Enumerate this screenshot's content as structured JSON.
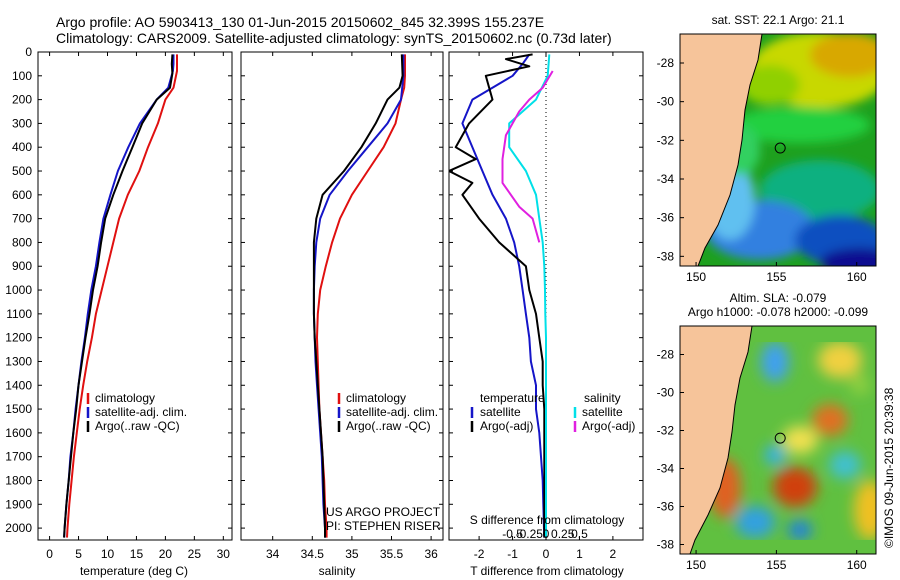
{
  "header": {
    "line1": "Argo profile: AO 5903413_130 01-Jun-2015 20150602_845 32.399S 155.237E",
    "line2": "Climatology: CARS2009. Satellite-adjusted climatology: synTS_20150602.nc (0.73d later)"
  },
  "credit": {
    "text": "©IMOS 09-Jun-2015 20:39:38"
  },
  "colors": {
    "climatology": "#e01010",
    "satellite": "#1515c8",
    "argo": "#000000",
    "sat_salinity": "#00e0e8",
    "argo_salinity": "#e020e0",
    "land": "#f6c49a",
    "ocean_low": "#1010a0",
    "ocean_mid": "#20c020",
    "ocean_high": "#e09000",
    "ocean_top": "#d02010"
  },
  "chart_data": [
    {
      "type": "line",
      "title": "",
      "xlabel": "temperature (deg C)",
      "ylabel": "",
      "xlim": [
        -2,
        31.5
      ],
      "ylim": [
        2050,
        0
      ],
      "xticks": [
        0,
        5,
        10,
        15,
        20,
        25,
        30
      ],
      "yticks": [
        0,
        100,
        200,
        300,
        400,
        500,
        600,
        700,
        800,
        900,
        1000,
        1100,
        1200,
        1300,
        1400,
        1500,
        1600,
        1700,
        1800,
        1900,
        2000
      ],
      "legend": [
        "climatology",
        "satellite-adj. clim.",
        "Argo(..raw -QC)"
      ],
      "legend_placement": "lower-middle",
      "series": [
        {
          "name": "climatology",
          "color": "#e01010",
          "values": [
            [
              22,
              10
            ],
            [
              22,
              50
            ],
            [
              22,
              80
            ],
            [
              21.4,
              150
            ],
            [
              20,
              200
            ],
            [
              18.7,
              300
            ],
            [
              17,
              400
            ],
            [
              15.5,
              500
            ],
            [
              13.5,
              600
            ],
            [
              12,
              700
            ],
            [
              11,
              800
            ],
            [
              10,
              900
            ],
            [
              9,
              1000
            ],
            [
              8,
              1100
            ],
            [
              7.3,
              1200
            ],
            [
              6.5,
              1300
            ],
            [
              5.8,
              1400
            ],
            [
              5.2,
              1500
            ],
            [
              4.7,
              1600
            ],
            [
              4.2,
              1700
            ],
            [
              3.8,
              1800
            ],
            [
              3.4,
              1900
            ],
            [
              3.1,
              2000
            ],
            [
              3,
              2040
            ]
          ]
        },
        {
          "name": "satellite-adj. clim.",
          "color": "#1515c8",
          "values": [
            [
              21.4,
              10
            ],
            [
              21.4,
              50
            ],
            [
              21.3,
              80
            ],
            [
              20.5,
              150
            ],
            [
              18.5,
              200
            ],
            [
              15.6,
              300
            ],
            [
              13.6,
              400
            ],
            [
              11.8,
              500
            ],
            [
              10.5,
              600
            ],
            [
              9.3,
              700
            ],
            [
              8.6,
              800
            ],
            [
              8,
              900
            ],
            [
              7.2,
              1000
            ],
            [
              6.6,
              1100
            ],
            [
              6.1,
              1200
            ],
            [
              5.5,
              1300
            ],
            [
              5,
              1400
            ],
            [
              4.5,
              1500
            ],
            [
              4.1,
              1600
            ],
            [
              3.6,
              1700
            ],
            [
              3.3,
              1800
            ],
            [
              2.9,
              1900
            ],
            [
              2.6,
              2000
            ],
            [
              2.5,
              2040
            ]
          ]
        },
        {
          "name": "Argo(..raw -QC)",
          "color": "#000000",
          "values": [
            [
              21.2,
              10
            ],
            [
              21.1,
              50
            ],
            [
              21.2,
              90
            ],
            [
              20.8,
              150
            ],
            [
              18.5,
              200
            ],
            [
              16,
              300
            ],
            [
              14.3,
              400
            ],
            [
              12.6,
              500
            ],
            [
              11,
              600
            ],
            [
              9.6,
              700
            ],
            [
              8.9,
              800
            ],
            [
              8.3,
              900
            ],
            [
              7.5,
              1000
            ],
            [
              6.9,
              1100
            ],
            [
              6.2,
              1200
            ],
            [
              5.6,
              1300
            ],
            [
              5,
              1400
            ],
            [
              4.6,
              1500
            ],
            [
              4.1,
              1600
            ],
            [
              3.7,
              1700
            ],
            [
              3.3,
              1800
            ],
            [
              2.9,
              1900
            ],
            [
              2.6,
              2000
            ],
            [
              2.5,
              2040
            ]
          ]
        }
      ]
    },
    {
      "type": "line",
      "title": "",
      "xlabel": "salinity",
      "ylabel": "",
      "xlim": [
        33.6,
        36.15
      ],
      "ylim": [
        2050,
        0
      ],
      "xticks": [
        34,
        34.5,
        35,
        35.5,
        36
      ],
      "xtick_labels": [
        "34",
        "34.5",
        "35",
        "35.5",
        "36"
      ],
      "legend": [
        "climatology",
        "satellite-adj. clim.",
        "Argo(..raw -QC)"
      ],
      "legend_placement": "lower-right",
      "annotation": [
        "US ARGO PROJECT",
        "PI: STEPHEN RISER"
      ],
      "series": [
        {
          "name": "climatology",
          "color": "#e01010",
          "values": [
            [
              35.67,
              10
            ],
            [
              35.67,
              100
            ],
            [
              35.66,
              150
            ],
            [
              35.62,
              200
            ],
            [
              35.55,
              300
            ],
            [
              35.4,
              400
            ],
            [
              35.2,
              500
            ],
            [
              35.0,
              600
            ],
            [
              34.85,
              700
            ],
            [
              34.75,
              800
            ],
            [
              34.67,
              900
            ],
            [
              34.6,
              1000
            ],
            [
              34.57,
              1100
            ],
            [
              34.56,
              1200
            ],
            [
              34.57,
              1300
            ],
            [
              34.58,
              1400
            ],
            [
              34.59,
              1500
            ],
            [
              34.61,
              1600
            ],
            [
              34.63,
              1700
            ],
            [
              34.65,
              1800
            ],
            [
              34.66,
              1900
            ],
            [
              34.68,
              2000
            ],
            [
              34.68,
              2040
            ]
          ]
        },
        {
          "name": "satellite-adj. clim.",
          "color": "#1515c8",
          "values": [
            [
              35.65,
              10
            ],
            [
              35.65,
              100
            ],
            [
              35.62,
              200
            ],
            [
              35.45,
              300
            ],
            [
              35.2,
              400
            ],
            [
              34.95,
              500
            ],
            [
              34.72,
              600
            ],
            [
              34.6,
              700
            ],
            [
              34.55,
              800
            ],
            [
              34.53,
              900
            ],
            [
              34.52,
              1000
            ],
            [
              34.52,
              1100
            ],
            [
              34.53,
              1200
            ],
            [
              34.54,
              1300
            ],
            [
              34.56,
              1400
            ],
            [
              34.58,
              1500
            ],
            [
              34.6,
              1600
            ],
            [
              34.62,
              1700
            ],
            [
              34.63,
              1800
            ],
            [
              34.64,
              1900
            ],
            [
              34.66,
              2000
            ],
            [
              34.66,
              2040
            ]
          ]
        },
        {
          "name": "Argo(..raw -QC)",
          "color": "#000000",
          "values": [
            [
              35.63,
              10
            ],
            [
              35.64,
              100
            ],
            [
              35.6,
              150
            ],
            [
              35.45,
              200
            ],
            [
              35.3,
              300
            ],
            [
              35.12,
              400
            ],
            [
              34.9,
              500
            ],
            [
              34.63,
              600
            ],
            [
              34.55,
              700
            ],
            [
              34.52,
              800
            ],
            [
              34.52,
              900
            ],
            [
              34.52,
              1000
            ],
            [
              34.52,
              1100
            ],
            [
              34.53,
              1200
            ],
            [
              34.55,
              1300
            ],
            [
              34.57,
              1400
            ],
            [
              34.59,
              1500
            ],
            [
              34.61,
              1600
            ],
            [
              34.63,
              1700
            ],
            [
              34.64,
              1800
            ],
            [
              34.65,
              1900
            ],
            [
              34.66,
              2000
            ],
            [
              34.66,
              2040
            ]
          ]
        }
      ]
    },
    {
      "type": "line",
      "title": "",
      "xlabel": "T difference from climatology",
      "top_xlabel": "S difference from climatology",
      "xlim": [
        -2.9,
        2.9
      ],
      "ylim": [
        2050,
        0
      ],
      "xticks": [
        -2,
        -1,
        0,
        1,
        2
      ],
      "top_ticks": [
        "-0.5",
        "-0.25",
        "0",
        "0.25",
        "0.5"
      ],
      "legend_groups": {
        "temperature": [
          "satellite",
          "Argo(-adj)"
        ],
        "salinity": [
          "satellite",
          "Argo(-adj)"
        ]
      },
      "legend_placement": "lower-middle",
      "series": [
        {
          "name": "temperature satellite",
          "color": "#1515c8",
          "values": [
            [
              -0.5,
              10
            ],
            [
              -0.7,
              50
            ],
            [
              -1,
              100
            ],
            [
              -2.2,
              200
            ],
            [
              -2.5,
              300
            ],
            [
              -2.2,
              400
            ],
            [
              -1.9,
              500
            ],
            [
              -1.6,
              600
            ],
            [
              -1.2,
              700
            ],
            [
              -0.95,
              800
            ],
            [
              -0.8,
              900
            ],
            [
              -0.7,
              1000
            ],
            [
              -0.6,
              1100
            ],
            [
              -0.5,
              1200
            ],
            [
              -0.45,
              1300
            ],
            [
              -0.3,
              1400
            ],
            [
              -0.3,
              1500
            ],
            [
              -0.2,
              1600
            ],
            [
              -0.15,
              1700
            ],
            [
              -0.1,
              1800
            ],
            [
              -0.08,
              1900
            ],
            [
              -0.06,
              2000
            ],
            [
              -0.05,
              2040
            ]
          ]
        },
        {
          "name": "temperature Argo(-adj)",
          "color": "#000000",
          "values": [
            [
              -0.4,
              10
            ],
            [
              -1.2,
              30
            ],
            [
              -0.5,
              60
            ],
            [
              -1.8,
              100
            ],
            [
              -1.6,
              200
            ],
            [
              -2.3,
              300
            ],
            [
              -2.7,
              400
            ],
            [
              -2.1,
              450
            ],
            [
              -2.9,
              500
            ],
            [
              -2.2,
              550
            ],
            [
              -2.5,
              600
            ],
            [
              -2.0,
              700
            ],
            [
              -1.4,
              800
            ],
            [
              -0.6,
              900
            ],
            [
              -0.5,
              1000
            ],
            [
              -0.3,
              1100
            ],
            [
              -0.2,
              1200
            ],
            [
              -0.1,
              1300
            ],
            [
              -0.1,
              1400
            ],
            [
              -0.05,
              1500
            ],
            [
              -0.05,
              1600
            ],
            [
              -0.05,
              1700
            ],
            [
              -0.05,
              1800
            ],
            [
              -0.05,
              1900
            ],
            [
              -0.05,
              2000
            ],
            [
              -0.05,
              2040
            ]
          ]
        },
        {
          "name": "salinity satellite",
          "color": "#00e0e8",
          "values": [
            [
              0.1,
              10
            ],
            [
              0.05,
              100
            ],
            [
              -0.3,
              200
            ],
            [
              -1.1,
              300
            ],
            [
              -1.1,
              400
            ],
            [
              -0.6,
              500
            ],
            [
              -0.3,
              600
            ],
            [
              -0.2,
              700
            ],
            [
              -0.1,
              800
            ],
            [
              -0.05,
              900
            ],
            [
              -0.03,
              1000
            ],
            [
              -0.02,
              1100
            ],
            [
              0,
              1200
            ],
            [
              0,
              1300
            ],
            [
              0,
              1400
            ],
            [
              0,
              1500
            ],
            [
              0,
              1600
            ],
            [
              0,
              1700
            ],
            [
              0,
              1800
            ],
            [
              0,
              1900
            ],
            [
              0,
              2000
            ],
            [
              0,
              2040
            ]
          ]
        },
        {
          "name": "salinity Argo(-adj)",
          "color": "#e020e0",
          "values": [
            [
              0.2,
              80
            ],
            [
              -0.1,
              150
            ],
            [
              -0.5,
              200
            ],
            [
              -0.8,
              250
            ],
            [
              -1.2,
              350
            ],
            [
              -1.3,
              450
            ],
            [
              -1.3,
              550
            ],
            [
              -0.8,
              650
            ],
            [
              -0.4,
              700
            ],
            [
              -0.2,
              800
            ]
          ]
        }
      ]
    },
    {
      "type": "heatmap",
      "title": "sat. SST: 22.1  Argo: 21.1",
      "xticks": [
        150,
        155,
        160
      ],
      "yticks": [
        -28,
        -30,
        -32,
        -34,
        -36,
        -38
      ],
      "xlim": [
        149,
        161.2
      ],
      "ylim": [
        -26.5,
        -38.5
      ],
      "marker": {
        "lon": 155.237,
        "lat": -32.399
      }
    },
    {
      "type": "heatmap",
      "title": "Altim. SLA: -0.079",
      "subtitle": "Argo h1000: -0.078 h2000: -0.099",
      "xticks": [
        150,
        155,
        160
      ],
      "yticks": [
        -28,
        -30,
        -32,
        -34,
        -36,
        -38
      ],
      "xlim": [
        149,
        161.2
      ],
      "ylim": [
        -26.5,
        -38.5
      ],
      "marker": {
        "lon": 155.237,
        "lat": -32.399
      }
    }
  ]
}
